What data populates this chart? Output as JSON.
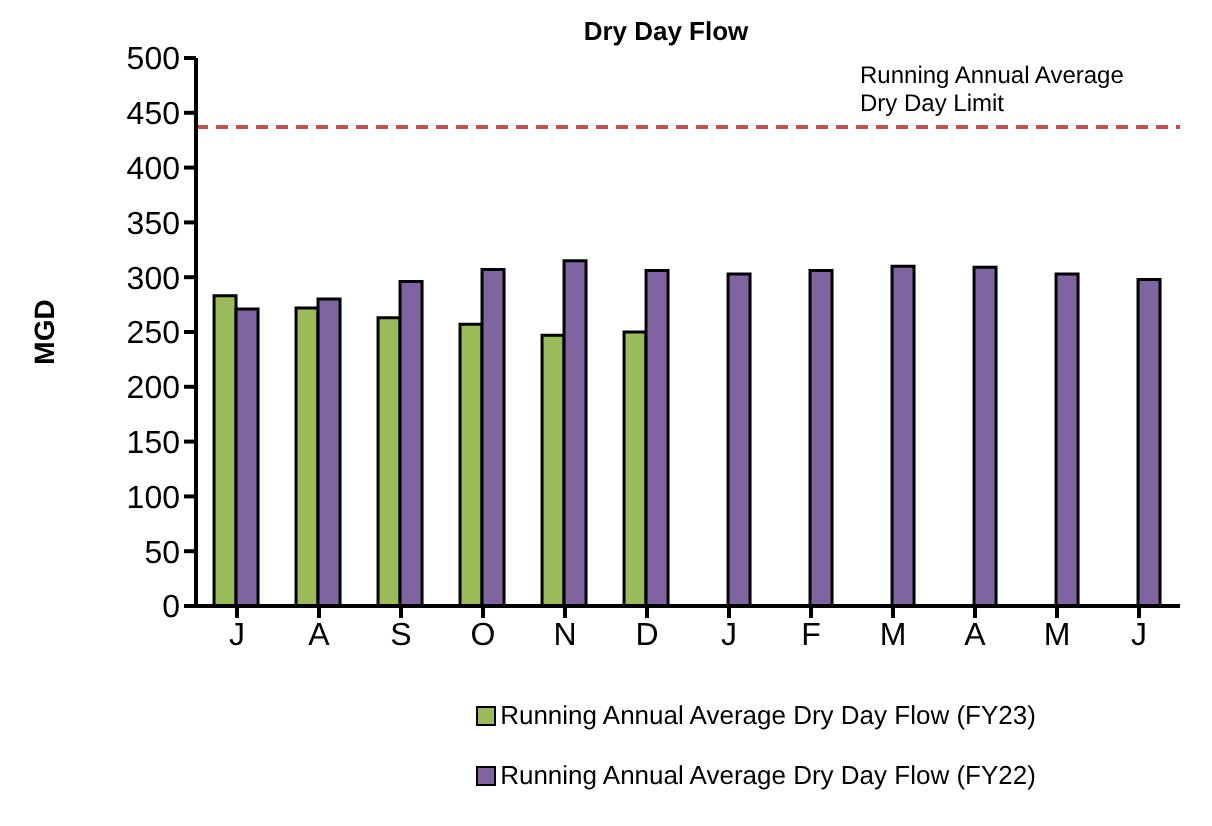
{
  "chart_data": {
    "type": "bar",
    "title": "Dry Day Flow",
    "ylabel": "MGD",
    "categories": [
      "J",
      "A",
      "S",
      "O",
      "N",
      "D",
      "J",
      "F",
      "M",
      "A",
      "M",
      "J"
    ],
    "series": [
      {
        "name": "Running Annual Average Dry Day Flow (FY23)",
        "color": "#9bbb59",
        "values": [
          283,
          272,
          263,
          257,
          247,
          250,
          null,
          null,
          null,
          null,
          null,
          null
        ]
      },
      {
        "name": "Running Annual Average Dry Day Flow (FY22)",
        "color": "#8064a2",
        "values": [
          271,
          280,
          296,
          307,
          315,
          306,
          303,
          306,
          310,
          309,
          303,
          298
        ]
      }
    ],
    "ylim": [
      0,
      500
    ],
    "yticks": [
      0,
      50,
      100,
      150,
      200,
      250,
      300,
      350,
      400,
      450,
      500
    ],
    "ref_lines": [
      {
        "axis": "y",
        "value": 437,
        "label": "Running Annual Average Dry Day Limit",
        "color": "#c0504d",
        "line_style": "dashed"
      }
    ],
    "grid": false,
    "legend": "bottom"
  }
}
